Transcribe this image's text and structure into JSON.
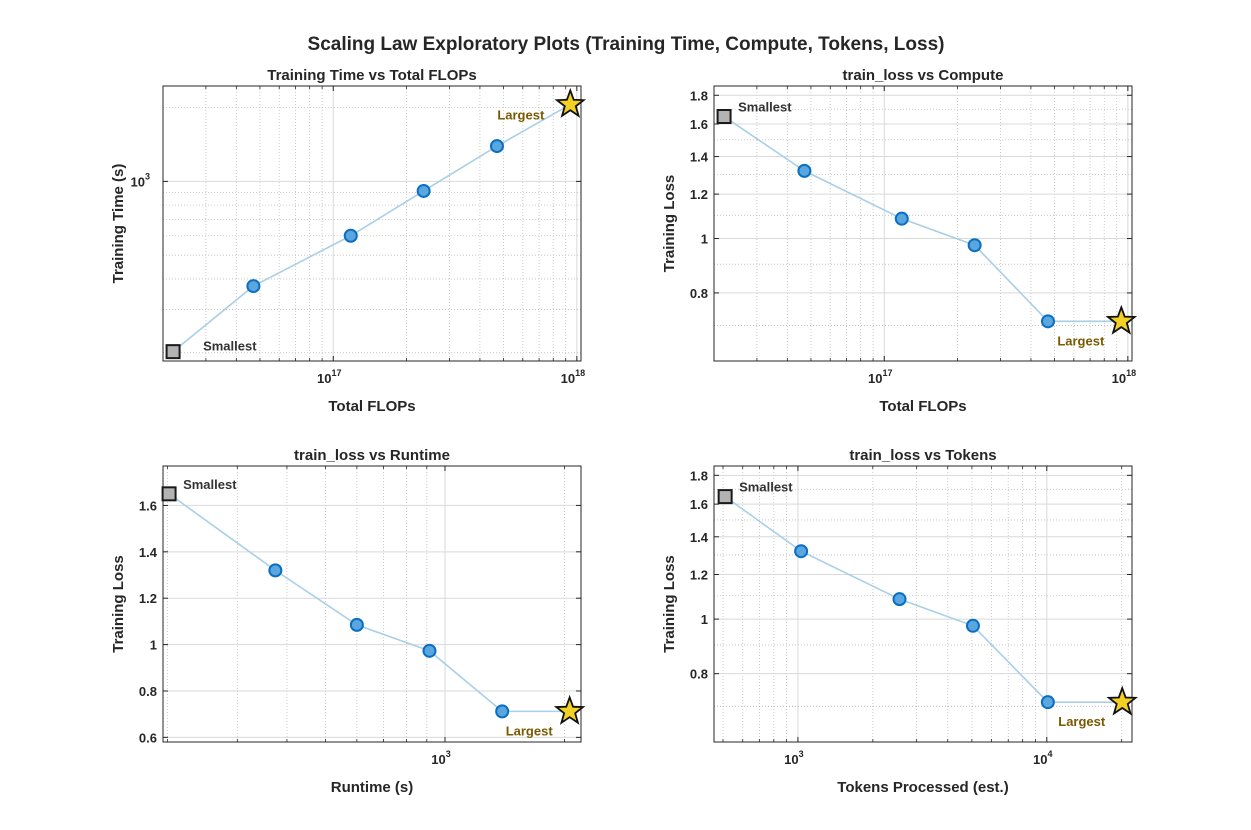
{
  "figure": {
    "title": "Scaling Law Exploratory Plots (Training Time, Compute, Tokens, Loss)"
  },
  "colors": {
    "line": "#a9cfe8",
    "marker_face": "#5aa7e0",
    "marker_edge": "#0a6fc2",
    "smallest_face": "#b3b3b3",
    "largest_face": "#f2d024",
    "grid_major": "#d9d9d9",
    "grid_minor": "#bfbfbf"
  },
  "chart_data": [
    {
      "type": "line",
      "title": "Training Time vs Total FLOPs",
      "xlabel": "Total FLOPs",
      "ylabel": "Training Time (s)",
      "xscale": "log",
      "yscale": "log",
      "xlim": [
        2e+16,
        1.04e+18
      ],
      "ylim": [
        185,
        2450
      ],
      "x": [
        2.2e+16,
        4.7e+16,
        1.18e+17,
        2.35e+17,
        4.7e+17,
        9.4e+17
      ],
      "y": [
        202,
        374,
        600,
        914,
        1393,
        2060
      ],
      "xticks": [
        {
          "mant": "10",
          "exp": "17",
          "value": 1e+17
        },
        {
          "mant": "10",
          "exp": "18",
          "value": 1e+18
        }
      ],
      "yticks": [
        {
          "mant": "10",
          "exp": "3",
          "value": 1000
        }
      ],
      "annotations": [
        {
          "text": "Smallest",
          "point": 0,
          "kind": "smallest"
        },
        {
          "text": "Largest",
          "point": 5,
          "kind": "largest"
        }
      ],
      "grid": true
    },
    {
      "type": "line",
      "title": "train_loss vs Compute",
      "xlabel": "Total FLOPs",
      "ylabel": "Training Loss",
      "xscale": "log",
      "yscale": "log",
      "xlim": [
        2e+16,
        1.04e+18
      ],
      "ylim": [
        0.605,
        1.87
      ],
      "x": [
        2.2e+16,
        4.7e+16,
        1.18e+17,
        2.35e+17,
        4.7e+17,
        9.4e+17
      ],
      "y": [
        1.65,
        1.32,
        1.085,
        0.973,
        0.712,
        0.712
      ],
      "xticks": [
        {
          "mant": "10",
          "exp": "17",
          "value": 1e+17
        },
        {
          "mant": "10",
          "exp": "18",
          "value": 1e+18
        }
      ],
      "yticks": [
        {
          "label": "0.8",
          "value": 0.8
        },
        {
          "label": "1",
          "value": 1
        },
        {
          "label": "1.2",
          "value": 1.2
        },
        {
          "label": "1.4",
          "value": 1.4
        },
        {
          "label": "1.6",
          "value": 1.6
        },
        {
          "label": "1.8",
          "value": 1.8
        }
      ],
      "annotations": [
        {
          "text": "Smallest",
          "point": 0,
          "kind": "smallest"
        },
        {
          "text": "Largest",
          "point": 5,
          "kind": "largest"
        }
      ],
      "grid": true
    },
    {
      "type": "line",
      "title": "train_loss vs Runtime",
      "xlabel": "Runtime (s)",
      "ylabel": "Training Loss",
      "xscale": "log",
      "yscale": "linear",
      "xlim": [
        195,
        2200
      ],
      "ylim": [
        0.58,
        1.77
      ],
      "x": [
        202,
        374,
        600,
        914,
        1393,
        2060
      ],
      "y": [
        1.65,
        1.32,
        1.085,
        0.973,
        0.712,
        0.712
      ],
      "xticks": [
        {
          "mant": "10",
          "exp": "3",
          "value": 1000
        }
      ],
      "yticks": [
        {
          "label": "0.6",
          "value": 0.6
        },
        {
          "label": "0.8",
          "value": 0.8
        },
        {
          "label": "1",
          "value": 1
        },
        {
          "label": "1.2",
          "value": 1.2
        },
        {
          "label": "1.4",
          "value": 1.4
        },
        {
          "label": "1.6",
          "value": 1.6
        }
      ],
      "annotations": [
        {
          "text": "Smallest",
          "point": 0,
          "kind": "smallest"
        },
        {
          "text": "Largest",
          "point": 5,
          "kind": "largest"
        }
      ],
      "grid": true
    },
    {
      "type": "line",
      "title": "train_loss vs Tokens",
      "xlabel": "Tokens Processed (est.)",
      "ylabel": "Training Loss",
      "xscale": "log",
      "yscale": "log",
      "xlim": [
        460,
        22000
      ],
      "ylim": [
        0.605,
        1.87
      ],
      "x": [
        510,
        1030,
        2560,
        5050,
        10100,
        20100
      ],
      "y": [
        1.65,
        1.32,
        1.085,
        0.973,
        0.712,
        0.712
      ],
      "xticks": [
        {
          "mant": "10",
          "exp": "3",
          "value": 1000
        },
        {
          "mant": "10",
          "exp": "4",
          "value": 10000
        }
      ],
      "yticks": [
        {
          "label": "0.8",
          "value": 0.8
        },
        {
          "label": "1",
          "value": 1
        },
        {
          "label": "1.2",
          "value": 1.2
        },
        {
          "label": "1.4",
          "value": 1.4
        },
        {
          "label": "1.6",
          "value": 1.6
        },
        {
          "label": "1.8",
          "value": 1.8
        }
      ],
      "annotations": [
        {
          "text": "Smallest",
          "point": 0,
          "kind": "smallest"
        },
        {
          "text": "Largest",
          "point": 5,
          "kind": "largest"
        }
      ],
      "grid": true
    }
  ]
}
